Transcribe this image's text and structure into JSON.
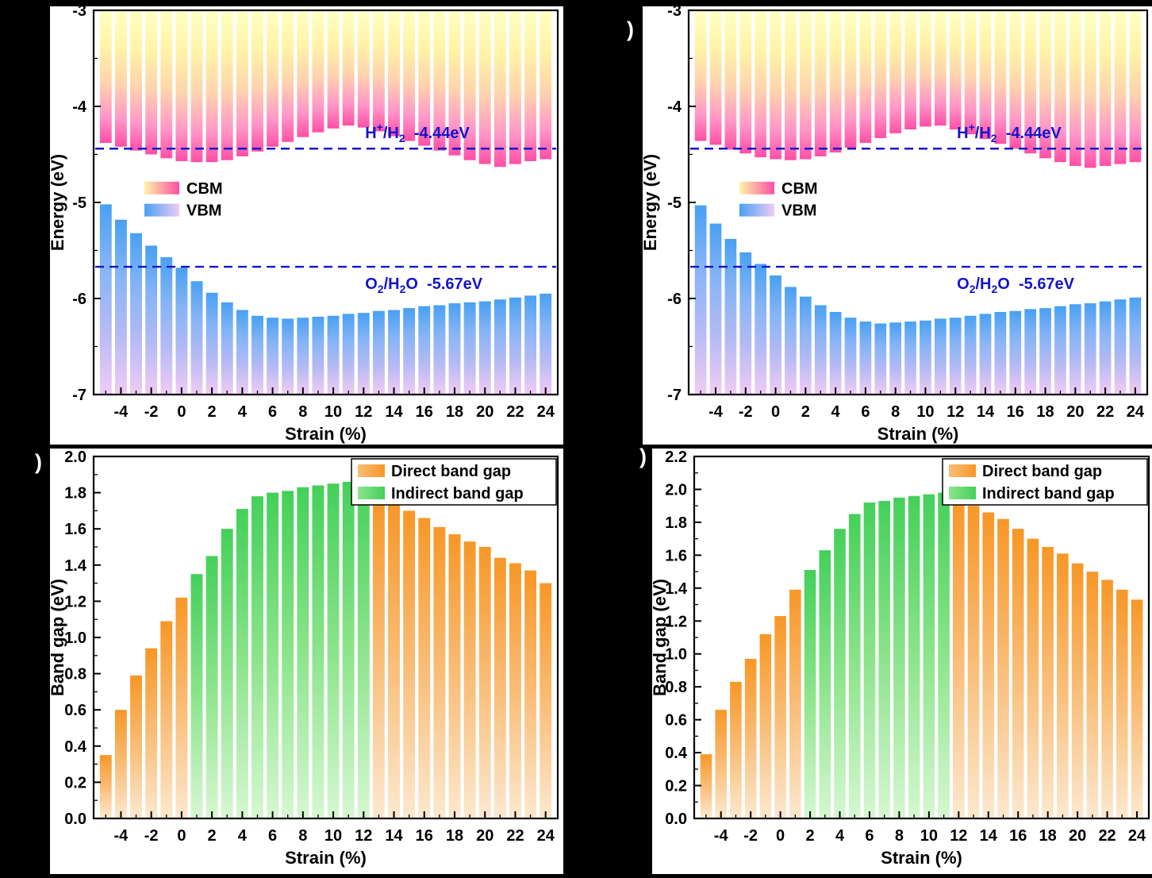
{
  "page": {
    "background": "#000000"
  },
  "panel_labels": {
    "a": "",
    "b": ")",
    "c": ")",
    "d": ")"
  },
  "chart_data": [
    {
      "panel": "a",
      "type": "bar",
      "subtype": "band-alignment",
      "xlabel": "Strain (%)",
      "ylabel": "Energy (eV)",
      "xlim": [
        -5.8,
        24.8
      ],
      "ylim": [
        -7,
        -3
      ],
      "x_major_ticks": [
        -4,
        -2,
        0,
        2,
        4,
        6,
        8,
        10,
        12,
        14,
        16,
        18,
        20,
        22,
        24
      ],
      "y_major_ticks": [
        -7,
        -6,
        -5,
        -4,
        -3
      ],
      "x": [
        -5,
        -4,
        -3,
        -2,
        -1,
        0,
        1,
        2,
        3,
        4,
        5,
        6,
        7,
        8,
        9,
        10,
        11,
        12,
        13,
        14,
        15,
        16,
        17,
        18,
        19,
        20,
        21,
        22,
        23,
        24
      ],
      "series": [
        {
          "name": "CBM",
          "values": [
            -4.38,
            -4.42,
            -4.46,
            -4.5,
            -4.54,
            -4.57,
            -4.58,
            -4.58,
            -4.56,
            -4.52,
            -4.47,
            -4.42,
            -4.37,
            -4.32,
            -4.27,
            -4.23,
            -4.2,
            -4.22,
            -4.26,
            -4.31,
            -4.36,
            -4.41,
            -4.46,
            -4.51,
            -4.56,
            -4.6,
            -4.63,
            -4.6,
            -4.57,
            -4.55
          ]
        },
        {
          "name": "VBM",
          "values": [
            -5.02,
            -5.18,
            -5.32,
            -5.45,
            -5.57,
            -5.68,
            -5.82,
            -5.94,
            -6.04,
            -6.12,
            -6.18,
            -6.2,
            -6.21,
            -6.2,
            -6.19,
            -6.18,
            -6.16,
            -6.15,
            -6.13,
            -6.12,
            -6.1,
            -6.08,
            -6.07,
            -6.05,
            -6.04,
            -6.03,
            -6.01,
            -5.99,
            -5.97,
            -5.95
          ]
        }
      ],
      "legend": {
        "entries": [
          "CBM",
          "VBM"
        ],
        "position": "center-left"
      },
      "reference_lines": [
        {
          "species": "H+/H2",
          "value_label": "-4.44eV",
          "value": -4.44
        },
        {
          "species": "O2/H2O",
          "value_label": "-5.67eV",
          "value": -5.67
        }
      ],
      "colors": {
        "cbm_gradient": [
          "#ffffc4",
          "#fff3a6",
          "#ffd2ae",
          "#ff97c8",
          "#ff4fa6"
        ],
        "cbm_offsets": [
          0,
          0.28,
          0.55,
          0.8,
          1
        ],
        "vbm_gradient": [
          "#49a0f2",
          "#86b4f6",
          "#b6baf4",
          "#efcbf4"
        ],
        "vbm_offsets": [
          0,
          0.33,
          0.66,
          1
        ],
        "reference_color": "#1414cc"
      }
    },
    {
      "panel": "b",
      "type": "bar",
      "subtype": "band-alignment",
      "xlabel": "Strain (%)",
      "ylabel": "Energy (eV)",
      "xlim": [
        -5.8,
        24.8
      ],
      "ylim": [
        -7,
        -3
      ],
      "x_major_ticks": [
        -4,
        -2,
        0,
        2,
        4,
        6,
        8,
        10,
        12,
        14,
        16,
        18,
        20,
        22,
        24
      ],
      "y_major_ticks": [
        -7,
        -6,
        -5,
        -4,
        -3
      ],
      "x": [
        -5,
        -4,
        -3,
        -2,
        -1,
        0,
        1,
        2,
        3,
        4,
        5,
        6,
        7,
        8,
        9,
        10,
        11,
        12,
        13,
        14,
        15,
        16,
        17,
        18,
        19,
        20,
        21,
        22,
        23,
        24
      ],
      "series": [
        {
          "name": "CBM",
          "values": [
            -4.36,
            -4.4,
            -4.45,
            -4.49,
            -4.53,
            -4.55,
            -4.56,
            -4.55,
            -4.52,
            -4.48,
            -4.43,
            -4.38,
            -4.33,
            -4.28,
            -4.24,
            -4.21,
            -4.2,
            -4.24,
            -4.29,
            -4.34,
            -4.39,
            -4.44,
            -4.49,
            -4.54,
            -4.58,
            -4.62,
            -4.64,
            -4.62,
            -4.6,
            -4.58
          ]
        },
        {
          "name": "VBM",
          "values": [
            -5.03,
            -5.22,
            -5.38,
            -5.52,
            -5.64,
            -5.76,
            -5.88,
            -5.98,
            -6.07,
            -6.14,
            -6.2,
            -6.24,
            -6.26,
            -6.25,
            -6.24,
            -6.23,
            -6.21,
            -6.2,
            -6.18,
            -6.16,
            -6.14,
            -6.13,
            -6.11,
            -6.1,
            -6.08,
            -6.06,
            -6.05,
            -6.03,
            -6.01,
            -5.99
          ]
        }
      ],
      "legend": {
        "entries": [
          "CBM",
          "VBM"
        ],
        "position": "center-left"
      },
      "reference_lines": [
        {
          "species": "H+/H2",
          "value_label": "-4.44eV",
          "value": -4.44
        },
        {
          "species": "O2/H2O",
          "value_label": "-5.67eV",
          "value": -5.67
        }
      ],
      "colors": {
        "cbm_gradient": [
          "#ffffc4",
          "#fff3a6",
          "#ffd2ae",
          "#ff97c8",
          "#ff4fa6"
        ],
        "cbm_offsets": [
          0,
          0.28,
          0.55,
          0.8,
          1
        ],
        "vbm_gradient": [
          "#49a0f2",
          "#86b4f6",
          "#b6baf4",
          "#efcbf4"
        ],
        "vbm_offsets": [
          0,
          0.33,
          0.66,
          1
        ],
        "reference_color": "#1414cc"
      }
    },
    {
      "panel": "c",
      "type": "bar",
      "subtype": "band-gap",
      "xlabel": "Strain (%)",
      "ylabel": "Band gap (eV)",
      "xlim": [
        -5.8,
        24.8
      ],
      "ylim": [
        0,
        2.0
      ],
      "y_tick_step": 0.2,
      "x_major_ticks": [
        -4,
        -2,
        0,
        2,
        4,
        6,
        8,
        10,
        12,
        14,
        16,
        18,
        20,
        22,
        24
      ],
      "x": [
        -5,
        -4,
        -3,
        -2,
        -1,
        0,
        1,
        2,
        3,
        4,
        5,
        6,
        7,
        8,
        9,
        10,
        11,
        12,
        13,
        14,
        15,
        16,
        17,
        18,
        19,
        20,
        21,
        22,
        23,
        24
      ],
      "values": [
        0.35,
        0.6,
        0.79,
        0.94,
        1.09,
        1.22,
        1.35,
        1.45,
        1.6,
        1.71,
        1.78,
        1.8,
        1.81,
        1.83,
        1.84,
        1.85,
        1.86,
        1.87,
        1.78,
        1.74,
        1.7,
        1.66,
        1.61,
        1.57,
        1.53,
        1.5,
        1.44,
        1.41,
        1.37,
        1.3
      ],
      "gap_type": [
        "direct",
        "direct",
        "direct",
        "direct",
        "direct",
        "direct",
        "indirect",
        "indirect",
        "indirect",
        "indirect",
        "indirect",
        "indirect",
        "indirect",
        "indirect",
        "indirect",
        "indirect",
        "indirect",
        "indirect",
        "direct",
        "direct",
        "direct",
        "direct",
        "direct",
        "direct",
        "direct",
        "direct",
        "direct",
        "direct",
        "direct",
        "direct"
      ],
      "legend": {
        "position": "top-right",
        "entries": [
          {
            "label": "Direct band gap",
            "type": "direct"
          },
          {
            "label": "Indirect band gap",
            "type": "indirect"
          }
        ]
      },
      "colors": {
        "direct_gradient": [
          "#f79727",
          "#f9bd77",
          "#fce8cf"
        ],
        "direct_offsets": [
          0,
          0.5,
          1
        ],
        "indirect_gradient": [
          "#44d05a",
          "#8ce48b",
          "#d6f7d2"
        ],
        "indirect_offsets": [
          0,
          0.5,
          1
        ]
      }
    },
    {
      "panel": "d",
      "type": "bar",
      "subtype": "band-gap",
      "xlabel": "Strain (%)",
      "ylabel": "Band gap (eV)",
      "xlim": [
        -5.8,
        24.8
      ],
      "ylim": [
        0,
        2.2
      ],
      "y_tick_step": 0.2,
      "x_major_ticks": [
        -4,
        -2,
        0,
        2,
        4,
        6,
        8,
        10,
        12,
        14,
        16,
        18,
        20,
        22,
        24
      ],
      "x": [
        -5,
        -4,
        -3,
        -2,
        -1,
        0,
        1,
        2,
        3,
        4,
        5,
        6,
        7,
        8,
        9,
        10,
        11,
        12,
        13,
        14,
        15,
        16,
        17,
        18,
        19,
        20,
        21,
        22,
        23,
        24
      ],
      "values": [
        0.39,
        0.66,
        0.83,
        0.97,
        1.12,
        1.23,
        1.39,
        1.51,
        1.63,
        1.76,
        1.85,
        1.92,
        1.93,
        1.95,
        1.96,
        1.97,
        1.98,
        1.93,
        1.9,
        1.86,
        1.82,
        1.76,
        1.7,
        1.65,
        1.61,
        1.55,
        1.5,
        1.45,
        1.39,
        1.33
      ],
      "gap_type": [
        "direct",
        "direct",
        "direct",
        "direct",
        "direct",
        "direct",
        "direct",
        "indirect",
        "indirect",
        "indirect",
        "indirect",
        "indirect",
        "indirect",
        "indirect",
        "indirect",
        "indirect",
        "indirect",
        "direct",
        "direct",
        "direct",
        "direct",
        "direct",
        "direct",
        "direct",
        "direct",
        "direct",
        "direct",
        "direct",
        "direct",
        "direct"
      ],
      "legend": {
        "position": "top-right",
        "entries": [
          {
            "label": "Direct band gap",
            "type": "direct"
          },
          {
            "label": "Indirect band gap",
            "type": "indirect"
          }
        ]
      },
      "colors": {
        "direct_gradient": [
          "#f79727",
          "#f9bd77",
          "#fce8cf"
        ],
        "direct_offsets": [
          0,
          0.5,
          1
        ],
        "indirect_gradient": [
          "#44d05a",
          "#8ce48b",
          "#d6f7d2"
        ],
        "indirect_offsets": [
          0,
          0.5,
          1
        ]
      }
    }
  ]
}
